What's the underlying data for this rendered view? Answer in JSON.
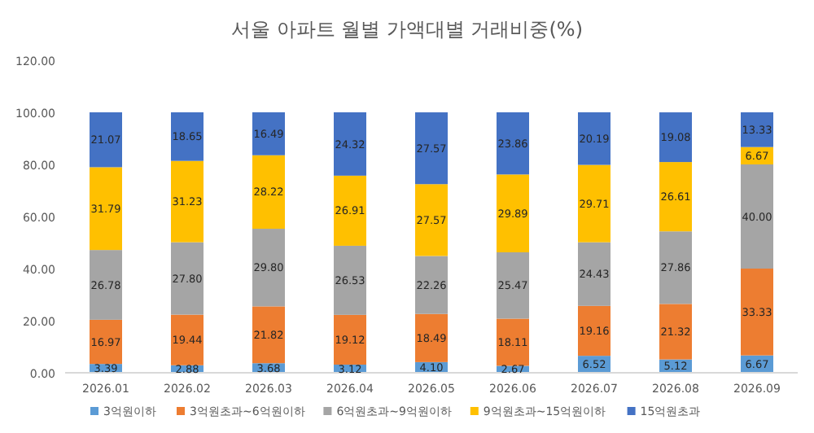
{
  "chart_data": {
    "type": "bar",
    "stacked": true,
    "title": "서울 아파트 월별 가액대별 거래비중(%)",
    "categories": [
      "2026.01",
      "2026.02",
      "2026.03",
      "2026.04",
      "2026.05",
      "2026.06",
      "2026.07",
      "2026.08",
      "2026.09"
    ],
    "ylim": [
      0,
      120
    ],
    "yticks": [
      {
        "value": 0,
        "label": "0.00"
      },
      {
        "value": 20,
        "label": "20.00"
      },
      {
        "value": 40,
        "label": "40.00"
      },
      {
        "value": 60,
        "label": "60.00"
      },
      {
        "value": 80,
        "label": "80.00"
      },
      {
        "value": 100,
        "label": "100.00"
      },
      {
        "value": 120,
        "label": "120.00"
      }
    ],
    "legend": "bottom",
    "series": [
      {
        "name": "3억원이하",
        "color": "#5b9bd5",
        "values": [
          3.39,
          2.88,
          3.68,
          3.12,
          4.1,
          2.67,
          6.52,
          5.12,
          6.67
        ],
        "value_labels": [
          "3.39",
          "2.88",
          "3.68",
          "3.12",
          "4.10",
          "2.67",
          "6.52",
          "5.12",
          "6.67"
        ]
      },
      {
        "name": "3억원초과~6억원이하",
        "color": "#ed7d31",
        "values": [
          16.97,
          19.44,
          21.82,
          19.12,
          18.49,
          18.11,
          19.16,
          21.32,
          33.33
        ],
        "value_labels": [
          "16.97",
          "19.44",
          "21.82",
          "19.12",
          "18.49",
          "18.11",
          "19.16",
          "21.32",
          "33.33"
        ]
      },
      {
        "name": "6억원초과~9억원이하",
        "color": "#a5a5a5",
        "values": [
          26.78,
          27.8,
          29.8,
          26.53,
          22.26,
          25.47,
          24.43,
          27.86,
          40.0
        ],
        "value_labels": [
          "26.78",
          "27.80",
          "29.80",
          "26.53",
          "22.26",
          "25.47",
          "24.43",
          "27.86",
          "40.00"
        ]
      },
      {
        "name": "9억원초과~15억원이하",
        "color": "#ffc000",
        "values": [
          31.79,
          31.23,
          28.22,
          26.91,
          27.57,
          29.89,
          29.71,
          26.61,
          6.67
        ],
        "value_labels": [
          "31.79",
          "31.23",
          "28.22",
          "26.91",
          "27.57",
          "29.89",
          "29.71",
          "26.61",
          "6.67"
        ]
      },
      {
        "name": "15억원초과",
        "color": "#4472c4",
        "values": [
          21.07,
          18.65,
          16.49,
          24.32,
          27.57,
          23.86,
          20.19,
          19.08,
          13.33
        ],
        "value_labels": [
          "21.07",
          "18.65",
          "16.49",
          "24.32",
          "27.57",
          "23.86",
          "20.19",
          "19.08",
          "13.33"
        ]
      }
    ]
  }
}
